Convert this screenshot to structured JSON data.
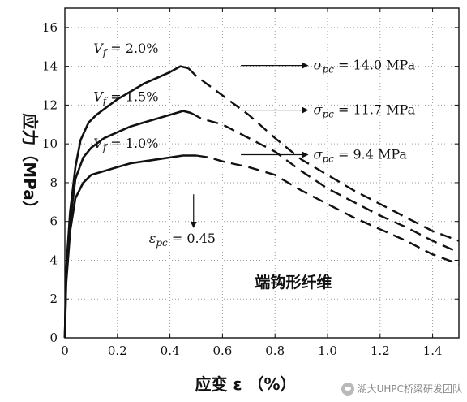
{
  "chart_data": {
    "type": "line",
    "title": "",
    "xlabel": "应变 ε （%）",
    "ylabel": "应力（MPa）",
    "xlim": [
      0,
      1.5
    ],
    "ylim": [
      0,
      17
    ],
    "x_ticks": [
      "0",
      "0.2",
      "0.4",
      "0.6",
      "0.8",
      "1.0",
      "1.2",
      "1.4"
    ],
    "y_ticks": [
      "0",
      "2",
      "4",
      "6",
      "8",
      "10",
      "12",
      "14",
      "16"
    ],
    "grid": true,
    "legend": "none",
    "series": [
      {
        "name": "Vf = 2.0%",
        "pre_peak": [
          [
            0,
            0
          ],
          [
            0.005,
            3.5
          ],
          [
            0.02,
            6.5
          ],
          [
            0.04,
            8.8
          ],
          [
            0.06,
            10.2
          ],
          [
            0.09,
            11.1
          ],
          [
            0.12,
            11.5
          ],
          [
            0.16,
            11.9
          ],
          [
            0.2,
            12.3
          ],
          [
            0.25,
            12.7
          ],
          [
            0.3,
            13.1
          ],
          [
            0.35,
            13.4
          ],
          [
            0.4,
            13.7
          ],
          [
            0.44,
            14.0
          ],
          [
            0.47,
            13.9
          ]
        ],
        "post_peak": [
          [
            0.47,
            13.9
          ],
          [
            0.5,
            13.5
          ],
          [
            0.6,
            12.5
          ],
          [
            0.7,
            11.5
          ],
          [
            0.8,
            10.3
          ],
          [
            0.9,
            9.2
          ],
          [
            1.0,
            8.4
          ],
          [
            1.1,
            7.6
          ],
          [
            1.2,
            6.9
          ],
          [
            1.3,
            6.2
          ],
          [
            1.4,
            5.5
          ],
          [
            1.5,
            5.0
          ]
        ]
      },
      {
        "name": "Vf = 1.5%",
        "pre_peak": [
          [
            0,
            0
          ],
          [
            0.005,
            3.2
          ],
          [
            0.02,
            6.0
          ],
          [
            0.04,
            8.2
          ],
          [
            0.07,
            9.3
          ],
          [
            0.1,
            9.8
          ],
          [
            0.15,
            10.3
          ],
          [
            0.2,
            10.6
          ],
          [
            0.25,
            10.9
          ],
          [
            0.3,
            11.1
          ],
          [
            0.35,
            11.3
          ],
          [
            0.4,
            11.5
          ],
          [
            0.45,
            11.7
          ],
          [
            0.48,
            11.6
          ]
        ],
        "post_peak": [
          [
            0.48,
            11.6
          ],
          [
            0.52,
            11.3
          ],
          [
            0.6,
            11.0
          ],
          [
            0.7,
            10.3
          ],
          [
            0.8,
            9.6
          ],
          [
            0.9,
            8.6
          ],
          [
            1.0,
            7.7
          ],
          [
            1.1,
            7.0
          ],
          [
            1.2,
            6.3
          ],
          [
            1.3,
            5.7
          ],
          [
            1.4,
            5.0
          ],
          [
            1.5,
            4.4
          ]
        ]
      },
      {
        "name": "Vf = 1.0%",
        "pre_peak": [
          [
            0,
            0
          ],
          [
            0.005,
            2.8
          ],
          [
            0.02,
            5.5
          ],
          [
            0.04,
            7.2
          ],
          [
            0.07,
            8.0
          ],
          [
            0.1,
            8.4
          ],
          [
            0.15,
            8.6
          ],
          [
            0.2,
            8.8
          ],
          [
            0.25,
            9.0
          ],
          [
            0.3,
            9.1
          ],
          [
            0.35,
            9.2
          ],
          [
            0.4,
            9.3
          ],
          [
            0.45,
            9.4
          ],
          [
            0.5,
            9.4
          ]
        ],
        "post_peak": [
          [
            0.5,
            9.4
          ],
          [
            0.55,
            9.3
          ],
          [
            0.6,
            9.1
          ],
          [
            0.7,
            8.8
          ],
          [
            0.8,
            8.4
          ],
          [
            0.9,
            7.6
          ],
          [
            1.0,
            6.9
          ],
          [
            1.1,
            6.2
          ],
          [
            1.2,
            5.6
          ],
          [
            1.3,
            5.0
          ],
          [
            1.4,
            4.3
          ],
          [
            1.5,
            3.8
          ]
        ]
      }
    ],
    "annotations": {
      "vf_labels": [
        {
          "text": "V_f = 2.0%",
          "x": 0.3,
          "y": 14.7
        },
        {
          "text": "V_f = 1.5%",
          "x": 0.3,
          "y": 12.2
        },
        {
          "text": "V_f = 1.0%",
          "x": 0.3,
          "y": 9.8
        }
      ],
      "sigma_labels": [
        {
          "text": "σ_pc = 14.0 MPa",
          "arrow_from": [
            0.67,
            14.0
          ],
          "arrow_to": [
            0.94,
            14.0
          ]
        },
        {
          "text": "σ_pc = 11.7 MPa",
          "arrow_from": [
            0.67,
            11.7
          ],
          "arrow_to": [
            0.94,
            11.7
          ]
        },
        {
          "text": "σ_pc = 9.4 MPa",
          "arrow_from": [
            0.67,
            9.4
          ],
          "arrow_to": [
            0.94,
            9.4
          ]
        }
      ],
      "epsilon_label": {
        "text": "ε_pc = 0.45",
        "arrow_x": 0.49,
        "arrow_from_y": 7.4,
        "arrow_to_y": 5.7
      },
      "fiber_type": "端钩形纤维"
    }
  },
  "watermark": "湖大UHPC桥梁研发团队"
}
